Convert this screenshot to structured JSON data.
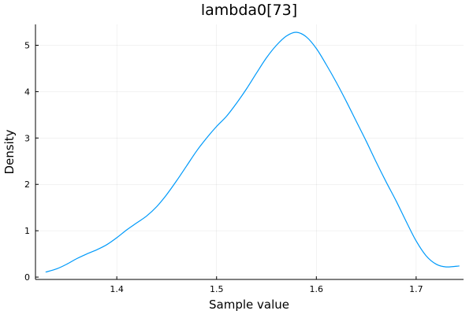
{
  "chart_data": {
    "type": "line",
    "title": "lambda0[73]",
    "xlabel": "Sample value",
    "ylabel": "Density",
    "xlim": [
      1.3185,
      1.7475
    ],
    "ylim": [
      -0.05,
      5.45
    ],
    "xticks": [
      1.4,
      1.5,
      1.6,
      1.7
    ],
    "yticks": [
      0,
      1,
      2,
      3,
      4,
      5
    ],
    "xtick_labels": [
      "1.4",
      "1.5",
      "1.6",
      "1.7"
    ],
    "ytick_labels": [
      "0",
      "1",
      "2",
      "3",
      "4",
      "5"
    ],
    "grid": true,
    "legend": "none",
    "series": [
      {
        "color": "#009AFA",
        "x": [
          1.329,
          1.34,
          1.35,
          1.36,
          1.37,
          1.38,
          1.39,
          1.4,
          1.41,
          1.42,
          1.43,
          1.44,
          1.45,
          1.46,
          1.47,
          1.48,
          1.49,
          1.5,
          1.51,
          1.52,
          1.53,
          1.54,
          1.55,
          1.56,
          1.57,
          1.58,
          1.59,
          1.6,
          1.61,
          1.62,
          1.63,
          1.64,
          1.65,
          1.66,
          1.67,
          1.68,
          1.69,
          1.7,
          1.71,
          1.72,
          1.73,
          1.743
        ],
        "y": [
          0.11,
          0.18,
          0.28,
          0.4,
          0.5,
          0.59,
          0.7,
          0.85,
          1.02,
          1.17,
          1.32,
          1.52,
          1.78,
          2.08,
          2.4,
          2.72,
          3.0,
          3.25,
          3.47,
          3.75,
          4.06,
          4.4,
          4.73,
          5.0,
          5.2,
          5.28,
          5.18,
          4.93,
          4.58,
          4.2,
          3.79,
          3.36,
          2.93,
          2.48,
          2.05,
          1.64,
          1.2,
          0.78,
          0.46,
          0.28,
          0.22,
          0.24
        ]
      }
    ]
  }
}
